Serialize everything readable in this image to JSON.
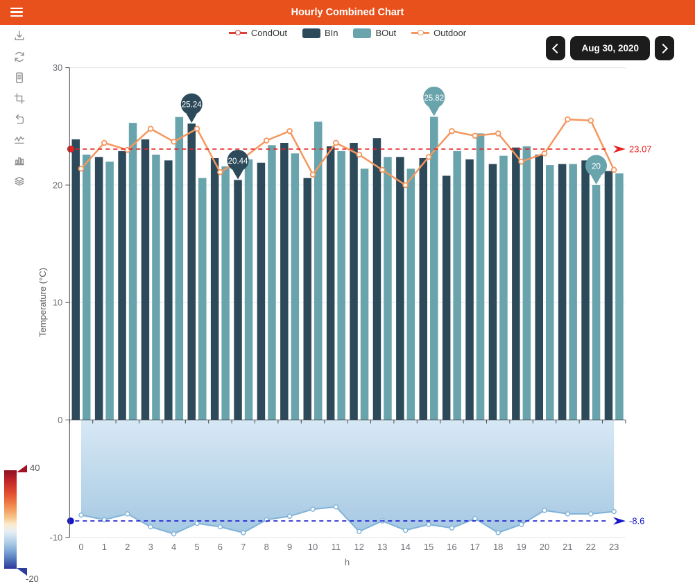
{
  "header": {
    "title": "Hourly Combined Chart"
  },
  "sidebar": {
    "icons": [
      "save-image-icon",
      "refresh-icon",
      "data-view-icon",
      "data-zoom-icon",
      "restore-zoom-icon",
      "line-chart-type-icon",
      "bar-chart-type-icon",
      "stack-icon"
    ]
  },
  "legend": [
    {
      "label": "CondOut",
      "type": "line",
      "color": "#d9413a"
    },
    {
      "label": "BIn",
      "type": "rect",
      "color": "#2d4a5a"
    },
    {
      "label": "BOut",
      "type": "rect",
      "color": "#69a3ac"
    },
    {
      "label": "Outdoor",
      "type": "line",
      "color": "#f4975f"
    }
  ],
  "date_nav": {
    "date": "Aug 30, 2020"
  },
  "visualmap": {
    "max_label": "40",
    "min_label": "-20",
    "colors_top_to_bottom": [
      "#8f1023",
      "#e35130",
      "#f7c589",
      "#fbeccf",
      "#b6d3ea",
      "#30389b"
    ]
  },
  "chart_data": {
    "type": "bar",
    "subtype": "combined bar + line + area",
    "x": [
      0,
      1,
      2,
      3,
      4,
      5,
      6,
      7,
      8,
      9,
      10,
      11,
      12,
      13,
      14,
      15,
      16,
      17,
      18,
      19,
      20,
      21,
      22,
      23
    ],
    "xlabel": "h",
    "ylabel": "Temperature (°C)",
    "ylim": [
      -10,
      30
    ],
    "y_ticks": [
      30,
      20,
      10,
      0,
      -10
    ],
    "grid": true,
    "legend_position": "top",
    "series": [
      {
        "name": "BIn",
        "type": "bar",
        "color": "#2d4a5a",
        "values": [
          23.9,
          22.4,
          22.9,
          23.9,
          22.1,
          25.24,
          22.3,
          20.44,
          21.9,
          23.6,
          20.6,
          23.3,
          23.6,
          24.0,
          22.4,
          22.3,
          20.8,
          22.2,
          21.8,
          23.2,
          22.6,
          21.8,
          22.1,
          21.2
        ]
      },
      {
        "name": "BOut",
        "type": "bar",
        "color": "#69a3ac",
        "values": [
          22.6,
          22.0,
          25.3,
          22.6,
          25.8,
          20.6,
          21.6,
          22.2,
          23.4,
          22.7,
          25.4,
          22.9,
          21.4,
          22.4,
          21.4,
          25.82,
          22.9,
          24.4,
          22.5,
          23.3,
          21.7,
          21.8,
          20.0,
          21.0
        ]
      },
      {
        "name": "Outdoor",
        "type": "line",
        "color": "#f4975f",
        "values": [
          21.4,
          23.6,
          23.0,
          24.8,
          23.7,
          24.8,
          21.1,
          22.3,
          23.8,
          24.6,
          20.9,
          23.6,
          22.6,
          21.3,
          20.0,
          22.4,
          24.6,
          24.2,
          24.4,
          22.0,
          22.7,
          25.6,
          25.5,
          21.3
        ]
      },
      {
        "name": "CondOut",
        "type": "area",
        "color": "#7fb2d9",
        "fill_top": "#d7e8f5",
        "fill_bottom": "#a5c8e2",
        "values": [
          -8.1,
          -8.5,
          -8.0,
          -9.1,
          -9.7,
          -8.8,
          -9.1,
          -9.6,
          -8.5,
          -8.2,
          -7.6,
          -7.4,
          -9.5,
          -8.6,
          -9.4,
          -8.9,
          -9.2,
          -8.4,
          -9.6,
          -8.9,
          -7.7,
          -8.0,
          -8.0,
          -7.8
        ]
      }
    ],
    "marklines": [
      {
        "label": "23.07",
        "value": 23.07,
        "color": "#e62222"
      },
      {
        "label": "-8.6",
        "value": -8.6,
        "color": "#1515cd"
      }
    ],
    "markpoints": [
      {
        "series": "BIn",
        "x": 5,
        "value": 25.24,
        "label": "25.24",
        "color": "#2d4a5a"
      },
      {
        "series": "BIn",
        "x": 7,
        "value": 20.44,
        "label": "20.44",
        "color": "#2d4a5a"
      },
      {
        "series": "BOut",
        "x": 15,
        "value": 25.82,
        "label": "25.82",
        "color": "#69a3ac"
      },
      {
        "series": "BOut",
        "x": 22,
        "value": 20,
        "label": "20",
        "color": "#69a3ac"
      }
    ]
  }
}
